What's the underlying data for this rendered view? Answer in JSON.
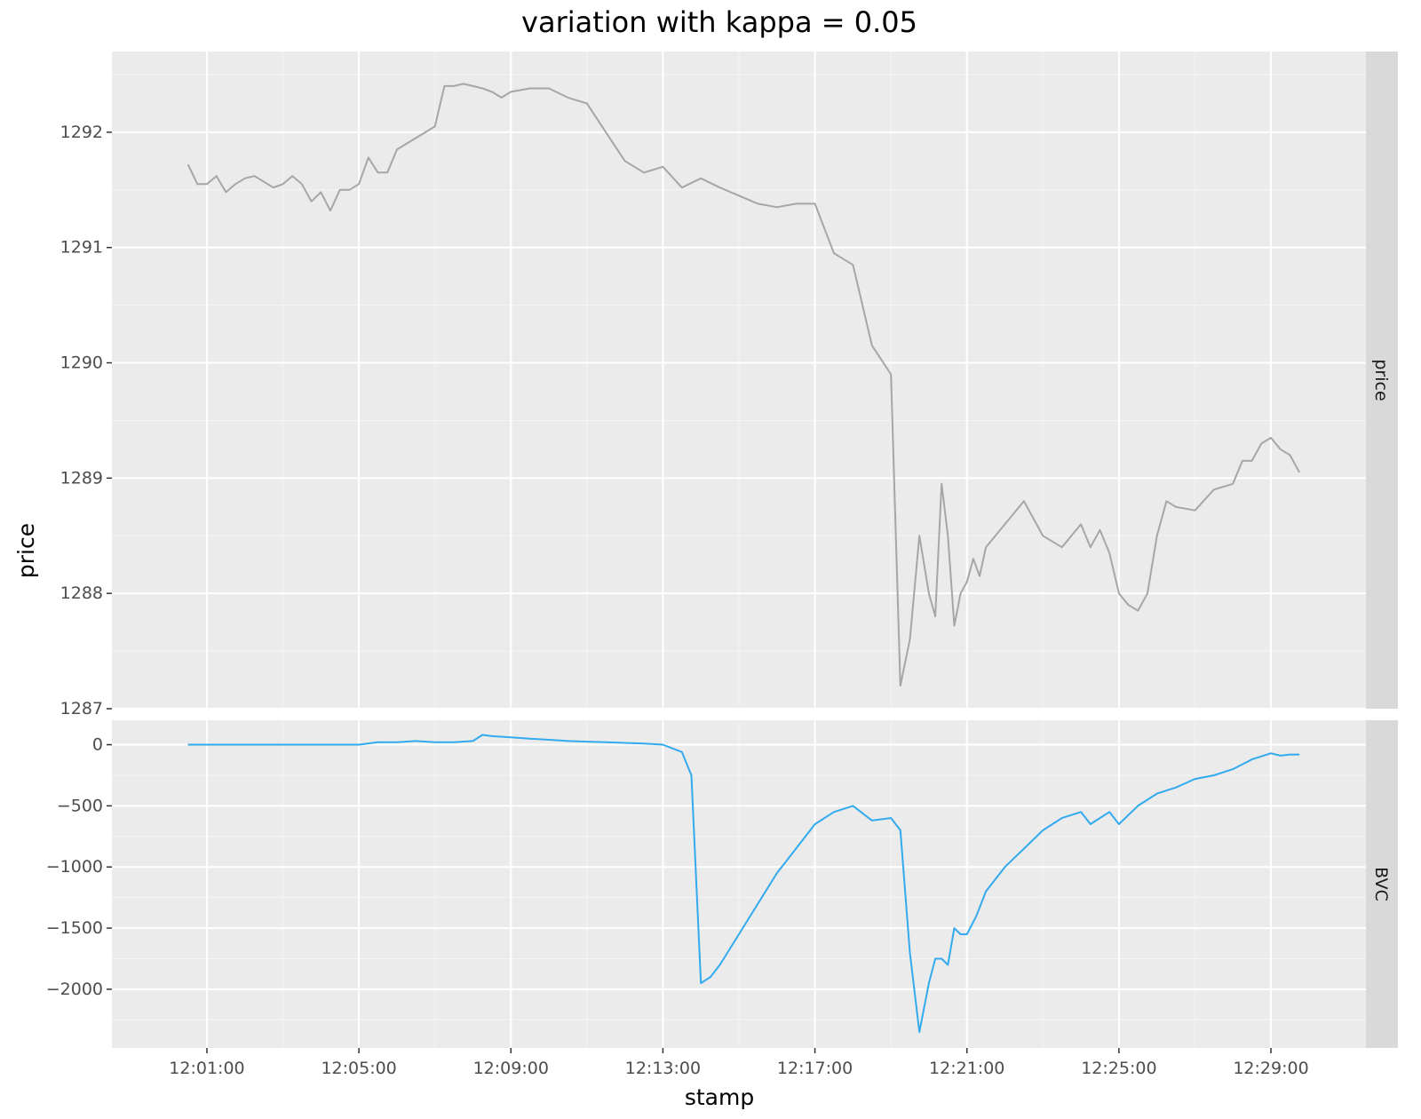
{
  "chart_data": {
    "type": "line",
    "title": "variation with kappa = 0.05",
    "xlabel": "stamp",
    "ylabel": "price",
    "x_tick_labels": [
      "12:01:00",
      "12:05:00",
      "12:09:00",
      "12:13:00",
      "12:17:00",
      "12:21:00",
      "12:25:00",
      "12:29:00"
    ],
    "xlim": [
      "11:58:30",
      "12:31:30"
    ],
    "facets": [
      {
        "strip_label": "price",
        "series": "price",
        "color": "#a6a6a6",
        "ylim": [
          1287.0,
          1292.7
        ],
        "y_ticks": [
          1287,
          1288,
          1289,
          1290,
          1291,
          1292
        ],
        "y_tick_labels": [
          "1287",
          "1288",
          "1289",
          "1290",
          "1291",
          "1292"
        ]
      },
      {
        "strip_label": "BVC",
        "series": "BVC",
        "color": "#33aaee",
        "ylim": [
          -2480,
          200
        ],
        "y_ticks": [
          0,
          -500,
          -1000,
          -1500,
          -2000
        ],
        "y_tick_labels": [
          "0",
          "−500",
          "−1000",
          "−1500",
          "−2000"
        ]
      }
    ],
    "series": [
      {
        "name": "price",
        "x": [
          "12:00:30",
          "12:00:45",
          "12:01:00",
          "12:01:15",
          "12:01:30",
          "12:01:45",
          "12:02:00",
          "12:02:15",
          "12:02:30",
          "12:02:45",
          "12:03:00",
          "12:03:15",
          "12:03:30",
          "12:03:45",
          "12:04:00",
          "12:04:15",
          "12:04:30",
          "12:04:45",
          "12:05:00",
          "12:05:15",
          "12:05:30",
          "12:05:45",
          "12:06:00",
          "12:06:15",
          "12:06:30",
          "12:06:45",
          "12:07:00",
          "12:07:15",
          "12:07:30",
          "12:07:45",
          "12:08:00",
          "12:08:15",
          "12:08:30",
          "12:08:45",
          "12:09:00",
          "12:09:30",
          "12:10:00",
          "12:10:30",
          "12:11:00",
          "12:11:30",
          "12:12:00",
          "12:12:30",
          "12:13:00",
          "12:13:30",
          "12:14:00",
          "12:14:30",
          "12:15:00",
          "12:15:30",
          "12:16:00",
          "12:16:30",
          "12:17:00",
          "12:17:30",
          "12:18:00",
          "12:18:30",
          "12:19:00",
          "12:19:15",
          "12:19:30",
          "12:19:45",
          "12:20:00",
          "12:20:10",
          "12:20:20",
          "12:20:30",
          "12:20:40",
          "12:20:50",
          "12:21:00",
          "12:21:10",
          "12:21:20",
          "12:21:30",
          "12:22:00",
          "12:22:30",
          "12:23:00",
          "12:23:30",
          "12:24:00",
          "12:24:15",
          "12:24:30",
          "12:24:45",
          "12:25:00",
          "12:25:15",
          "12:25:30",
          "12:25:45",
          "12:26:00",
          "12:26:15",
          "12:26:30",
          "12:27:00",
          "12:27:30",
          "12:28:00",
          "12:28:15",
          "12:28:30",
          "12:28:45",
          "12:29:00",
          "12:29:15",
          "12:29:30",
          "12:29:45"
        ],
        "y": [
          1291.72,
          1291.55,
          1291.55,
          1291.62,
          1291.48,
          1291.55,
          1291.6,
          1291.62,
          1291.57,
          1291.52,
          1291.55,
          1291.62,
          1291.55,
          1291.4,
          1291.48,
          1291.32,
          1291.5,
          1291.5,
          1291.55,
          1291.78,
          1291.65,
          1291.65,
          1291.85,
          1291.9,
          1291.95,
          1292.0,
          1292.05,
          1292.4,
          1292.4,
          1292.42,
          1292.4,
          1292.38,
          1292.35,
          1292.3,
          1292.35,
          1292.38,
          1292.38,
          1292.3,
          1292.25,
          1292.0,
          1291.75,
          1291.65,
          1291.7,
          1291.52,
          1291.6,
          1291.52,
          1291.45,
          1291.38,
          1291.35,
          1291.38,
          1291.38,
          1290.95,
          1290.85,
          1290.15,
          1289.9,
          1287.2,
          1287.6,
          1288.5,
          1288.0,
          1287.8,
          1288.95,
          1288.5,
          1287.72,
          1288.0,
          1288.1,
          1288.3,
          1288.15,
          1288.4,
          1288.6,
          1288.8,
          1288.5,
          1288.4,
          1288.6,
          1288.4,
          1288.55,
          1288.35,
          1288.0,
          1287.9,
          1287.85,
          1288.0,
          1288.5,
          1288.8,
          1288.75,
          1288.72,
          1288.9,
          1288.95,
          1289.15,
          1289.15,
          1289.3,
          1289.35,
          1289.25,
          1289.2,
          1289.05
        ]
      },
      {
        "name": "BVC",
        "x": [
          "12:00:30",
          "12:05:00",
          "12:05:30",
          "12:06:00",
          "12:06:30",
          "12:07:00",
          "12:07:30",
          "12:08:00",
          "12:08:15",
          "12:08:30",
          "12:09:00",
          "12:09:30",
          "12:10:00",
          "12:10:30",
          "12:11:00",
          "12:11:30",
          "12:12:00",
          "12:12:30",
          "12:13:00",
          "12:13:15",
          "12:13:30",
          "12:13:45",
          "12:14:00",
          "12:14:15",
          "12:14:30",
          "12:15:00",
          "12:15:30",
          "12:16:00",
          "12:16:30",
          "12:17:00",
          "12:17:30",
          "12:18:00",
          "12:18:30",
          "12:19:00",
          "12:19:15",
          "12:19:30",
          "12:19:45",
          "12:20:00",
          "12:20:10",
          "12:20:20",
          "12:20:30",
          "12:20:40",
          "12:20:50",
          "12:21:00",
          "12:21:15",
          "12:21:30",
          "12:22:00",
          "12:22:30",
          "12:23:00",
          "12:23:30",
          "12:24:00",
          "12:24:15",
          "12:24:30",
          "12:24:45",
          "12:25:00",
          "12:25:30",
          "12:26:00",
          "12:26:30",
          "12:27:00",
          "12:27:30",
          "12:28:00",
          "12:28:30",
          "12:29:00",
          "12:29:15",
          "12:29:30",
          "12:29:45"
        ],
        "y": [
          0,
          0,
          20,
          20,
          30,
          20,
          20,
          30,
          80,
          70,
          60,
          50,
          40,
          30,
          25,
          20,
          15,
          10,
          0,
          -30,
          -60,
          -250,
          -1950,
          -1900,
          -1800,
          -1550,
          -1300,
          -1050,
          -850,
          -650,
          -550,
          -500,
          -620,
          -600,
          -700,
          -1700,
          -2350,
          -1950,
          -1750,
          -1750,
          -1800,
          -1500,
          -1550,
          -1550,
          -1400,
          -1200,
          -1000,
          -850,
          -700,
          -600,
          -550,
          -650,
          -600,
          -550,
          -650,
          -500,
          -400,
          -350,
          -280,
          -250,
          -200,
          -120,
          -70,
          -90,
          -80,
          -80
        ]
      }
    ]
  }
}
